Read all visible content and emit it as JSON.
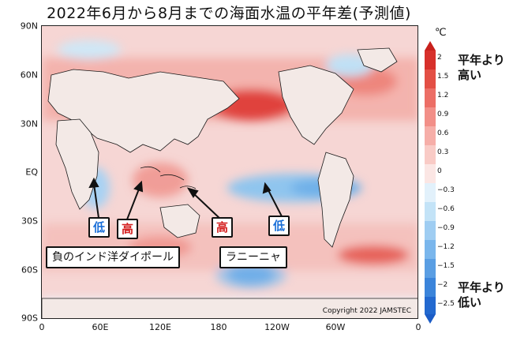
{
  "title": "2022年6月から8月までの海面水温の平年差(予測値)",
  "map": {
    "lat_labels": [
      "90N",
      "60N",
      "30N",
      "EQ",
      "30S",
      "60S",
      "90S"
    ],
    "lon_labels": [
      "0",
      "60E",
      "120E",
      "180",
      "120W",
      "60W",
      "0"
    ],
    "copyright": "Copyright  2022  JAMSTEC"
  },
  "annotations": {
    "indian_low": "低",
    "indian_high": "高",
    "pacific_high": "高",
    "pacific_low": "低",
    "iod_label": "負のインド洋ダイポール",
    "lanina_label": "ラニーニャ"
  },
  "colorbar": {
    "unit": "℃",
    "ticks": [
      "2",
      "1.5",
      "1.2",
      "0.9",
      "0.6",
      "0.3",
      "0",
      "−0.3",
      "−0.6",
      "−0.9",
      "−1.2",
      "−1.5",
      "−2",
      "−2.5"
    ],
    "warm_note_1": "平年より",
    "warm_note_2": "高い",
    "cold_note_1": "平年より",
    "cold_note_2": "低い",
    "colors": [
      "#d7302b",
      "#e34f45",
      "#ec6e66",
      "#f28f88",
      "#f6aea8",
      "#f9cbc6",
      "#fbe6e4",
      "#e2f1fb",
      "#c3e3f7",
      "#9fcdf2",
      "#7ab6ec",
      "#5a9ee3",
      "#3b84da",
      "#2369cf"
    ]
  }
}
